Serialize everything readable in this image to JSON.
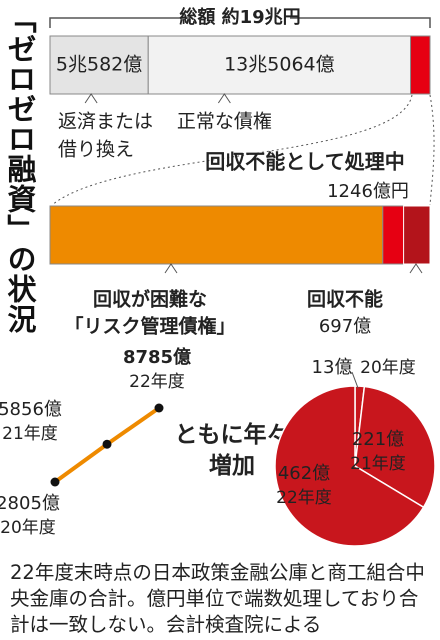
{
  "title": "「ゼロゼロ融資」の状況",
  "overview": {
    "total_label": "総額 約19兆円",
    "segments": [
      {
        "name_lines": [
          "返済または",
          "借り換え"
        ],
        "value": 50582,
        "value_label": "5兆582億",
        "color": "#e4e4e4"
      },
      {
        "name_lines": [
          "正常な債権"
        ],
        "value": 135064,
        "value_label": "13兆5064億",
        "color": "#f2f2f2"
      },
      {
        "value": 10031,
        "color": "#e60012"
      }
    ]
  },
  "breakdown": {
    "segments": [
      {
        "name_lines": [
          "回収が困難な",
          "「リスク管理債権」"
        ],
        "value": 8785,
        "color": "#ee8a00"
      },
      {
        "name_lines": [
          "回収不能として処理中"
        ],
        "value": 1246,
        "value_label": "1246億円",
        "color": "#e60012"
      }
    ],
    "unrecoverable": {
      "name": "回収不能",
      "value": 697,
      "value_label": "697億",
      "color": "#b3141b"
    }
  },
  "trend": {
    "type": "line",
    "categories": [
      "20年度",
      "21年度",
      "22年度"
    ],
    "values": [
      2805,
      5856,
      8785
    ],
    "value_labels": [
      "2805億",
      "5856億",
      "8785億"
    ],
    "color": "#ee8a00",
    "annotation_lines": [
      "ともに年々",
      "増加"
    ]
  },
  "pie": {
    "type": "pie",
    "categories": [
      "20年度",
      "21年度",
      "22年度"
    ],
    "values": [
      13,
      221,
      462
    ],
    "value_labels": [
      "13億",
      "221億",
      "462億"
    ],
    "color": "#c8161d"
  },
  "footnote": "22年度末時点の日本政策金融公庫と商工組合中央金庫の合計。億円単位で端数処理しており合計は一致しない。会計検査院による"
}
